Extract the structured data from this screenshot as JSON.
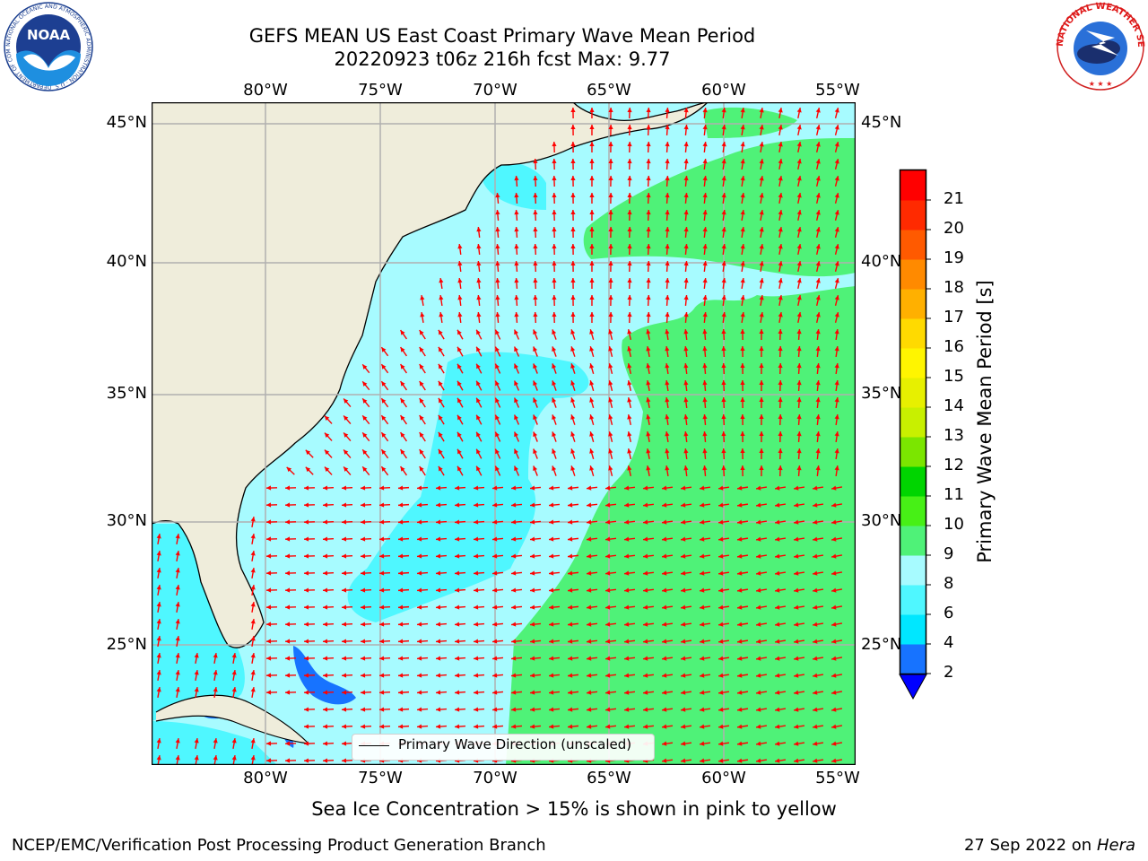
{
  "header": {
    "title_line1": "GEFS MEAN US East Coast Primary Wave Mean Period",
    "title_line2": "20220923 t06z 216h fcst   Max: 9.77"
  },
  "logos": {
    "left": "NOAA",
    "left_ring_text": "NATIONAL OCEANIC AND ATMOSPHERIC ADMINISTRATION · U.S. DEPARTMENT OF COMMERCE",
    "right_ring_text": "NATIONAL WEATHER SERVICE"
  },
  "axes": {
    "lon_labels": [
      "80°W",
      "75°W",
      "70°W",
      "65°W",
      "60°W",
      "55°W"
    ],
    "lat_labels": [
      "45°N",
      "40°N",
      "35°N",
      "30°N",
      "25°N"
    ]
  },
  "colorbar": {
    "title": "Primary Wave Mean Period [s]",
    "ticks": [
      "2",
      "4",
      "6",
      "8",
      "9",
      "10",
      "11",
      "12",
      "13",
      "14",
      "15",
      "16",
      "17",
      "18",
      "19",
      "20",
      "21"
    ],
    "colors": [
      "#0b2cff",
      "#1773ff",
      "#00e7ff",
      "#4ff7ff",
      "#a7fbff",
      "#4ff278",
      "#47f016",
      "#00d500",
      "#7be600",
      "#c8f000",
      "#e7f000",
      "#fff500",
      "#ffda00",
      "#ffb000",
      "#ff8a00",
      "#ff5a00",
      "#ff2a00",
      "#ff0000"
    ],
    "extend_color": "#0000ff"
  },
  "legend": {
    "label": "Primary Wave Direction (unscaled)"
  },
  "map_colors": {
    "land": "#efeddb",
    "band_cyan": "#4ff7ff",
    "band_light": "#a7fbff",
    "band_green": "#4ff278",
    "band_blue": "#1773ff",
    "arrow": "#ff0000",
    "grid": "#b0b0b0"
  },
  "footer": {
    "note": "Sea Ice Concentration > 15% is shown in pink to yellow",
    "credit_left": "NCEP/EMC/Verification Post Processing Product Generation Branch",
    "credit_date": "27 Sep 2022 on",
    "credit_machine": "Hera"
  }
}
